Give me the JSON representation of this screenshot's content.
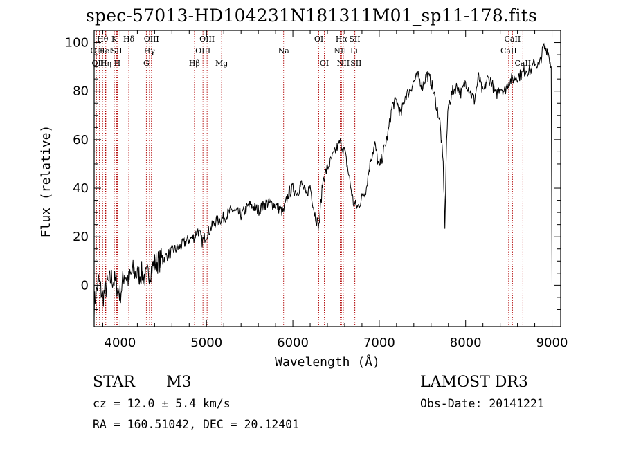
{
  "chart_data": {
    "type": "line",
    "title": "spec-57013-HD104231N181311M01_sp11-178.fits",
    "xlabel": "Wavelength (Å)",
    "ylabel": "Flux (relative)",
    "xlim": [
      3700,
      9100
    ],
    "ylim": [
      -17,
      105
    ],
    "xticks": [
      4000,
      5000,
      6000,
      7000,
      8000,
      9000
    ],
    "yticks": [
      0,
      20,
      40,
      60,
      80,
      100
    ],
    "series": [
      {
        "name": "flux",
        "x": [
          3700,
          3750,
          3800,
          3850,
          3900,
          3950,
          4000,
          4050,
          4100,
          4150,
          4200,
          4250,
          4300,
          4350,
          4400,
          4500,
          4600,
          4700,
          4800,
          4860,
          4900,
          4950,
          5000,
          5100,
          5200,
          5300,
          5400,
          5500,
          5600,
          5700,
          5800,
          5890,
          5950,
          6000,
          6050,
          6100,
          6150,
          6200,
          6250,
          6300,
          6350,
          6400,
          6450,
          6500,
          6550,
          6600,
          6650,
          6700,
          6750,
          6800,
          6850,
          6900,
          6950,
          7000,
          7050,
          7100,
          7150,
          7200,
          7250,
          7300,
          7350,
          7400,
          7450,
          7500,
          7550,
          7600,
          7650,
          7700,
          7740,
          7760,
          7780,
          7800,
          7850,
          7900,
          7950,
          8000,
          8050,
          8100,
          8150,
          8200,
          8250,
          8300,
          8350,
          8400,
          8450,
          8500,
          8550,
          8600,
          8650,
          8700,
          8750,
          8800,
          8850,
          8900,
          8950,
          8990,
          9000
        ],
        "y": [
          -8,
          2,
          -5,
          0,
          3,
          1,
          -4,
          5,
          2,
          6,
          4,
          5,
          3,
          6,
          9,
          11,
          14,
          16,
          19,
          20,
          23,
          18,
          21,
          26,
          28,
          31,
          29,
          33,
          31,
          34,
          33,
          30,
          38,
          40,
          38,
          42,
          37,
          41,
          30,
          24,
          44,
          48,
          52,
          56,
          59,
          55,
          45,
          34,
          32,
          36,
          40,
          52,
          58,
          48,
          55,
          62,
          74,
          76,
          70,
          78,
          80,
          84,
          86,
          82,
          87,
          84,
          76,
          68,
          50,
          25,
          60,
          74,
          80,
          82,
          79,
          84,
          80,
          76,
          86,
          79,
          85,
          84,
          78,
          82,
          80,
          84,
          85,
          86,
          87,
          89,
          88,
          92,
          90,
          98,
          97,
          90,
          0
        ]
      }
    ],
    "lines": [
      {
        "label": "OII",
        "x": 3727,
        "row": 1
      },
      {
        "label": "OIII",
        "x": 3760,
        "row": 2
      },
      {
        "label": "Hθ",
        "x": 3798,
        "row": 0
      },
      {
        "label": "HeI",
        "x": 3830,
        "row": 1
      },
      {
        "label": "Hη",
        "x": 3835,
        "row": 2
      },
      {
        "label": "K",
        "x": 3933,
        "row": 0
      },
      {
        "label": "SII",
        "x": 3960,
        "row": 1
      },
      {
        "label": "H",
        "x": 3968,
        "row": 2
      },
      {
        "label": "Hδ",
        "x": 4101,
        "row": 0
      },
      {
        "label": "OIII",
        "x": 4363,
        "row": 0
      },
      {
        "label": "Hγ",
        "x": 4340,
        "row": 1
      },
      {
        "label": "G",
        "x": 4304,
        "row": 2
      },
      {
        "label": "Hβ",
        "x": 4861,
        "row": 2
      },
      {
        "label": "OIII",
        "x": 5007,
        "row": 0
      },
      {
        "label": "OIII",
        "x": 4959,
        "row": 1
      },
      {
        "label": "Mg",
        "x": 5175,
        "row": 2
      },
      {
        "label": "Na",
        "x": 5893,
        "row": 1
      },
      {
        "label": "OI",
        "x": 6300,
        "row": 0
      },
      {
        "label": "OI",
        "x": 6364,
        "row": 2
      },
      {
        "label": "Hα",
        "x": 6563,
        "row": 0
      },
      {
        "label": "NII",
        "x": 6548,
        "row": 1
      },
      {
        "label": "NII",
        "x": 6584,
        "row": 2
      },
      {
        "label": "SII",
        "x": 6716,
        "row": 0
      },
      {
        "label": "Li",
        "x": 6708,
        "row": 1
      },
      {
        "label": "SII",
        "x": 6731,
        "row": 2
      },
      {
        "label": "CaII",
        "x": 8542,
        "row": 0
      },
      {
        "label": "CaII",
        "x": 8498,
        "row": 1
      },
      {
        "label": "CaII",
        "x": 8662,
        "row": 2
      }
    ],
    "grid": false
  },
  "info": {
    "class": "STAR",
    "subclass": "M3",
    "survey": "LAMOST DR3",
    "cz": "cz = 12.0 ± 5.4 km/s",
    "obs_date": "Obs-Date: 20141221",
    "coords": "RA = 160.51042, DEC =  20.12401"
  }
}
